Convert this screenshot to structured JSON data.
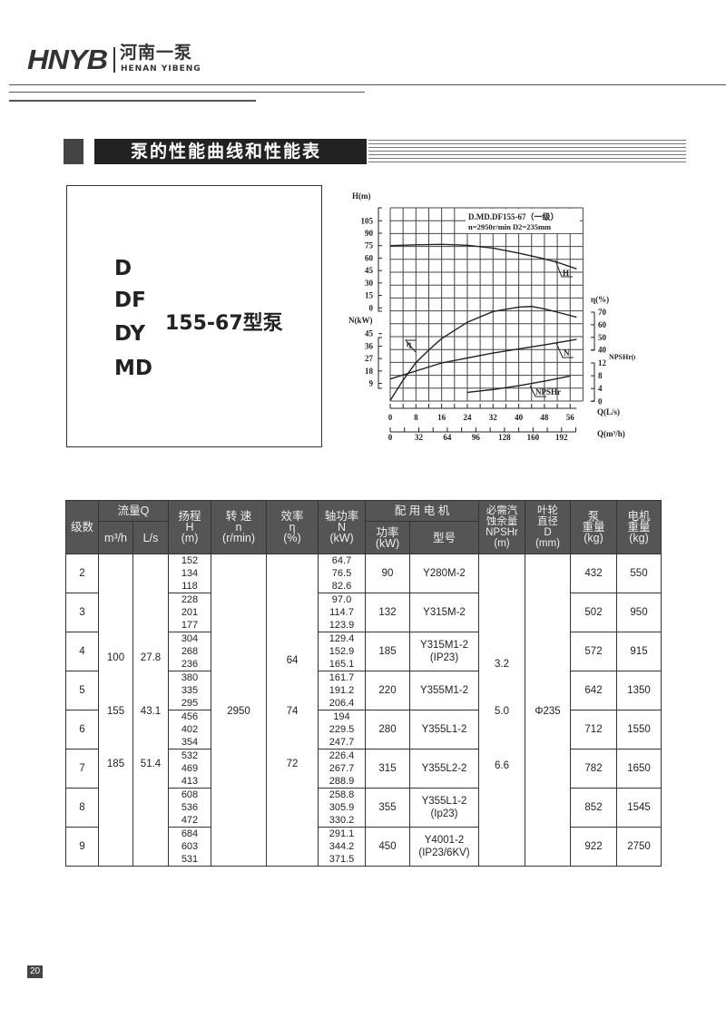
{
  "header": {
    "logo_en": "HNYB",
    "logo_cn": "河南一泵",
    "logo_pinyin": "HENAN YIBENG"
  },
  "section": {
    "title": "泵的性能曲线和性能表"
  },
  "models": {
    "types": [
      "D",
      "DF",
      "DY",
      "MD"
    ],
    "name": "155-67型泵"
  },
  "performance_chart": {
    "title": "D.MD.DF155-67（一级）",
    "subtitle": "n=2950r/min  D2=235mm",
    "x_labels": {
      "q_ls": "Q(L/s)",
      "q_m3h": "Q(m³/h)",
      "h": "H(m)",
      "n": "N(kW)",
      "eta": "η(%)",
      "npshr": "NPSHr(m)"
    },
    "q_ls_ticks": [
      0,
      8,
      16,
      24,
      32,
      40,
      48,
      56
    ],
    "q_m3h_ticks": [
      0,
      32,
      64,
      96,
      128,
      160,
      192
    ],
    "h_ticks": [
      0,
      15,
      30,
      45,
      60,
      75,
      90,
      105
    ],
    "n_ticks": [
      9,
      18,
      27,
      36,
      45
    ],
    "eta_ticks": [
      40,
      50,
      60,
      70
    ],
    "npshr_ticks": [
      0,
      4,
      8,
      12
    ],
    "curve_labels": {
      "H": "H",
      "N": "N",
      "eta": "η",
      "NPSHr": "NPSHr"
    },
    "H": [
      [
        0,
        75
      ],
      [
        8,
        76
      ],
      [
        16,
        76.6
      ],
      [
        24,
        75.5
      ],
      [
        32,
        72
      ],
      [
        40,
        66
      ],
      [
        48,
        59
      ],
      [
        52,
        55
      ],
      [
        58,
        47
      ]
    ],
    "eta": [
      [
        0,
        0
      ],
      [
        4,
        16
      ],
      [
        8,
        30
      ],
      [
        12,
        40
      ],
      [
        16,
        49
      ],
      [
        24,
        62
      ],
      [
        32,
        70.5
      ],
      [
        40,
        74
      ],
      [
        44,
        74.5
      ],
      [
        48,
        72.6
      ],
      [
        52,
        70
      ],
      [
        58,
        66
      ]
    ],
    "N": [
      [
        0,
        12.2
      ],
      [
        16,
        23.8
      ],
      [
        32,
        31
      ],
      [
        48,
        36.9
      ],
      [
        58,
        40.8
      ]
    ],
    "NPSHr": [
      [
        24,
        2.8
      ],
      [
        32,
        3.7
      ],
      [
        40,
        4.9
      ],
      [
        48,
        6.3
      ],
      [
        56,
        7.9
      ]
    ]
  },
  "table": {
    "headers": {
      "stage": "级数",
      "flow": "流量Q",
      "flow_m3h": "m³/h",
      "flow_ls": "L/s",
      "head": "扬程\nH\n(m)",
      "speed": "转 速\nn\n(r/min)",
      "eff": "效率\nη\n(%)",
      "power": "轴功率\nN\n(kW)",
      "motor": "配 用 电 机",
      "motor_kw": "功率\n(kW)",
      "motor_model": "型号",
      "npshr": "必需汽\n蚀余量\nNPSHr\n(m)",
      "impeller": "叶轮\n直径\nD\n(mm)",
      "pump_wt": "泵\n重量\n(kg)",
      "motor_wt": "电机\n重量\n(kg)"
    },
    "flow_m3h": [
      "100",
      "155",
      "185"
    ],
    "flow_ls": [
      "27.8",
      "43.1",
      "51.4"
    ],
    "speed": "2950",
    "eff": [
      "64",
      "74",
      "72"
    ],
    "npshr": [
      "3.2",
      "5.0",
      "6.6"
    ],
    "impeller": "Φ235",
    "rows": [
      {
        "stage": "2",
        "h": "152\n134\n118",
        "n": "64.7\n76.5\n82.6",
        "kw": "90",
        "model": "Y280M-2",
        "pump": "432",
        "motor": "550"
      },
      {
        "stage": "3",
        "h": "228\n201\n177",
        "n": "97.0\n114.7\n123.9",
        "kw": "132",
        "model": "Y315M-2",
        "pump": "502",
        "motor": "950"
      },
      {
        "stage": "4",
        "h": "304\n268\n236",
        "n": "129.4\n152.9\n165.1",
        "kw": "185",
        "model": "Y315M1-2\n(IP23)",
        "pump": "572",
        "motor": "915"
      },
      {
        "stage": "5",
        "h": "380\n335\n295",
        "n": "161.7\n191.2\n206.4",
        "kw": "220",
        "model": "Y355M1-2",
        "pump": "642",
        "motor": "1350"
      },
      {
        "stage": "6",
        "h": "456\n402\n354",
        "n": "194\n229.5\n247.7",
        "kw": "280",
        "model": "Y355L1-2",
        "pump": "712",
        "motor": "1550"
      },
      {
        "stage": "7",
        "h": "532\n469\n413",
        "n": "226.4\n267.7\n288.9",
        "kw": "315",
        "model": "Y355L2-2",
        "pump": "782",
        "motor": "1650"
      },
      {
        "stage": "8",
        "h": "608\n536\n472",
        "n": "258.8\n305.9\n330.2",
        "kw": "355",
        "model": "Y355L1-2\n(Ip23)",
        "pump": "852",
        "motor": "1545"
      },
      {
        "stage": "9",
        "h": "684\n603\n531",
        "n": "291.1\n344.2\n371.5",
        "kw": "450",
        "model": "Y4001-2\n(IP23/6KV)",
        "pump": "922",
        "motor": "2750"
      }
    ]
  },
  "footer": {
    "page": "20"
  }
}
